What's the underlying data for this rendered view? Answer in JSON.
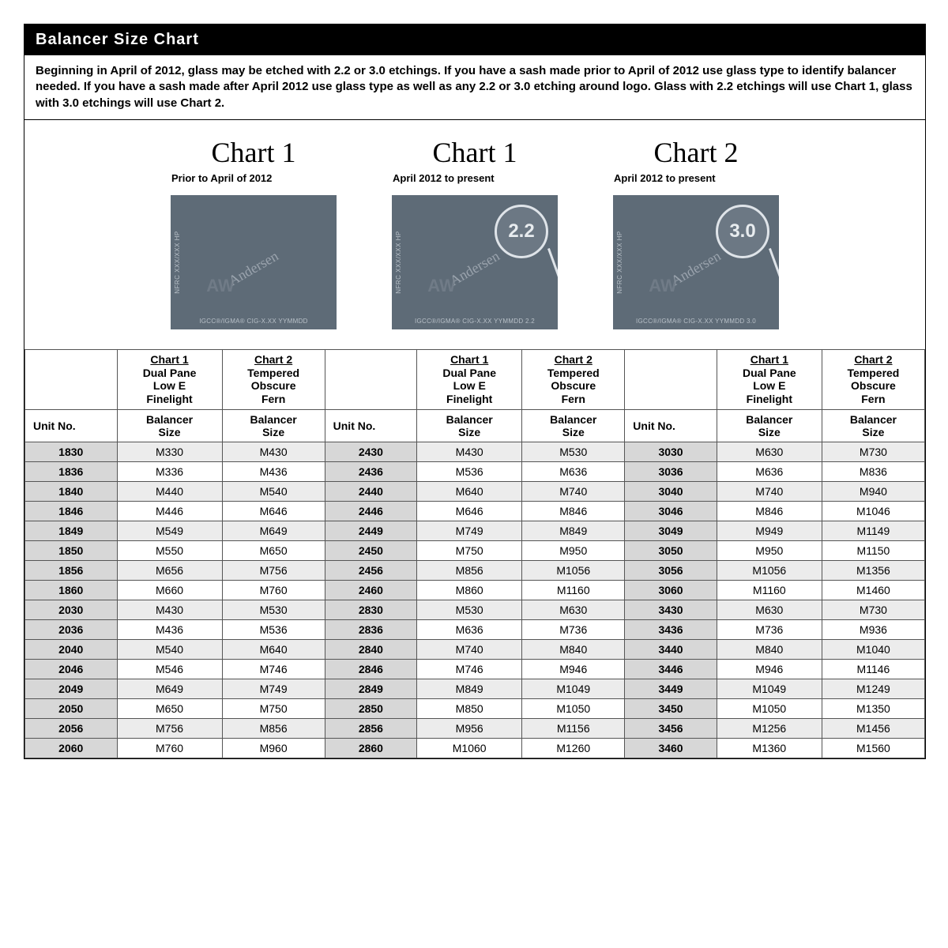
{
  "title": "Balancer Size Chart",
  "intro": "Beginning in April of 2012, glass may be etched with 2.2 or 3.0 etchings.  If you have a sash made prior to April of 2012 use glass type to identify balancer needed.  If you have a sash made after April 2012 use glass type as well as any 2.2 or 3.0 etching around logo. Glass with 2.2 etchings will use Chart 1, glass with 3.0 etchings will use Chart 2.",
  "samples": [
    {
      "title": "Chart 1",
      "subtitle": "Prior to April of 2012",
      "badge": "",
      "side": "NFRC XXX/XXX HP",
      "logo": "Andersen",
      "aw": "AW",
      "bottom": "IGCC®/IGMA® CIG-X.XX YYMMDD"
    },
    {
      "title": "Chart 1",
      "subtitle": "April 2012 to present",
      "badge": "2.2",
      "side": "NFRC XXX/XXX HP",
      "logo": "Andersen",
      "aw": "AW",
      "bottom": "IGCC®/IGMA® CIG-X.XX YYMMDD 2.2"
    },
    {
      "title": "Chart 2",
      "subtitle": "April 2012 to present",
      "badge": "3.0",
      "side": "NFRC XXX/XXX HP",
      "logo": "Andersen",
      "aw": "AW",
      "bottom": "IGCC®/IGMA® CIG-X.XX YYMMDD 3.0"
    }
  ],
  "col_headers": {
    "chart1": {
      "top": "Chart 1",
      "l1": "Dual Pane",
      "l2": "Low E",
      "l3": "Finelight"
    },
    "chart2": {
      "top": "Chart 2",
      "l1": "Tempered",
      "l2": "Obscure",
      "l3": "Fern"
    },
    "bal": "Balancer Size",
    "unit": "Unit No."
  },
  "colors": {
    "title_bg": "#000000",
    "title_fg": "#ffffff",
    "etch_bg": "#5e6b77",
    "unit_bg": "#d7d7d7",
    "alt_bg": "#ececec",
    "border": "#555555"
  },
  "table": {
    "groups": [
      {
        "rows": [
          {
            "unit": "1830",
            "c1": "M330",
            "c2": "M430"
          },
          {
            "unit": "1836",
            "c1": "M336",
            "c2": "M436"
          },
          {
            "unit": "1840",
            "c1": "M440",
            "c2": "M540"
          },
          {
            "unit": "1846",
            "c1": "M446",
            "c2": "M646"
          },
          {
            "unit": "1849",
            "c1": "M549",
            "c2": "M649"
          },
          {
            "unit": "1850",
            "c1": "M550",
            "c2": "M650"
          },
          {
            "unit": "1856",
            "c1": "M656",
            "c2": "M756"
          },
          {
            "unit": "1860",
            "c1": "M660",
            "c2": "M760"
          },
          {
            "unit": "2030",
            "c1": "M430",
            "c2": "M530"
          },
          {
            "unit": "2036",
            "c1": "M436",
            "c2": "M536"
          },
          {
            "unit": "2040",
            "c1": "M540",
            "c2": "M640"
          },
          {
            "unit": "2046",
            "c1": "M546",
            "c2": "M746"
          },
          {
            "unit": "2049",
            "c1": "M649",
            "c2": "M749"
          },
          {
            "unit": "2050",
            "c1": "M650",
            "c2": "M750"
          },
          {
            "unit": "2056",
            "c1": "M756",
            "c2": "M856"
          },
          {
            "unit": "2060",
            "c1": "M760",
            "c2": "M960"
          }
        ]
      },
      {
        "rows": [
          {
            "unit": "2430",
            "c1": "M430",
            "c2": "M530"
          },
          {
            "unit": "2436",
            "c1": "M536",
            "c2": "M636"
          },
          {
            "unit": "2440",
            "c1": "M640",
            "c2": "M740"
          },
          {
            "unit": "2446",
            "c1": "M646",
            "c2": "M846"
          },
          {
            "unit": "2449",
            "c1": "M749",
            "c2": "M849"
          },
          {
            "unit": "2450",
            "c1": "M750",
            "c2": "M950"
          },
          {
            "unit": "2456",
            "c1": "M856",
            "c2": "M1056"
          },
          {
            "unit": "2460",
            "c1": "M860",
            "c2": "M1160"
          },
          {
            "unit": "2830",
            "c1": "M530",
            "c2": "M630"
          },
          {
            "unit": "2836",
            "c1": "M636",
            "c2": "M736"
          },
          {
            "unit": "2840",
            "c1": "M740",
            "c2": "M840"
          },
          {
            "unit": "2846",
            "c1": "M746",
            "c2": "M946"
          },
          {
            "unit": "2849",
            "c1": "M849",
            "c2": "M1049"
          },
          {
            "unit": "2850",
            "c1": "M850",
            "c2": "M1050"
          },
          {
            "unit": "2856",
            "c1": "M956",
            "c2": "M1156"
          },
          {
            "unit": "2860",
            "c1": "M1060",
            "c2": "M1260"
          }
        ]
      },
      {
        "rows": [
          {
            "unit": "3030",
            "c1": "M630",
            "c2": "M730"
          },
          {
            "unit": "3036",
            "c1": "M636",
            "c2": "M836"
          },
          {
            "unit": "3040",
            "c1": "M740",
            "c2": "M940"
          },
          {
            "unit": "3046",
            "c1": "M846",
            "c2": "M1046"
          },
          {
            "unit": "3049",
            "c1": "M949",
            "c2": "M1149"
          },
          {
            "unit": "3050",
            "c1": "M950",
            "c2": "M1150"
          },
          {
            "unit": "3056",
            "c1": "M1056",
            "c2": "M1356"
          },
          {
            "unit": "3060",
            "c1": "M1160",
            "c2": "M1460"
          },
          {
            "unit": "3430",
            "c1": "M630",
            "c2": "M730"
          },
          {
            "unit": "3436",
            "c1": "M736",
            "c2": "M936"
          },
          {
            "unit": "3440",
            "c1": "M840",
            "c2": "M1040"
          },
          {
            "unit": "3446",
            "c1": "M946",
            "c2": "M1146"
          },
          {
            "unit": "3449",
            "c1": "M1049",
            "c2": "M1249"
          },
          {
            "unit": "3450",
            "c1": "M1050",
            "c2": "M1350"
          },
          {
            "unit": "3456",
            "c1": "M1256",
            "c2": "M1456"
          },
          {
            "unit": "3460",
            "c1": "M1360",
            "c2": "M1560"
          }
        ]
      }
    ]
  }
}
